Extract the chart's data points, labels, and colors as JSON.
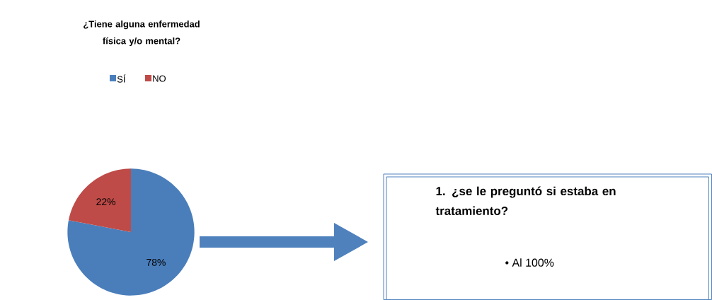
{
  "chart_data": {
    "type": "pie",
    "title": "¿Tiene alguna enfermedad física y/o mental?",
    "categories": [
      "SÍ",
      "NO"
    ],
    "values": [
      78,
      22
    ],
    "colors": [
      "#4a7ebb",
      "#be4b48"
    ],
    "value_labels": [
      "78%",
      "22%"
    ],
    "legend": "top",
    "annotations": [
      "1. ¿se le preguntó si estaba en tratamiento?",
      "• Al 100%"
    ]
  }
}
